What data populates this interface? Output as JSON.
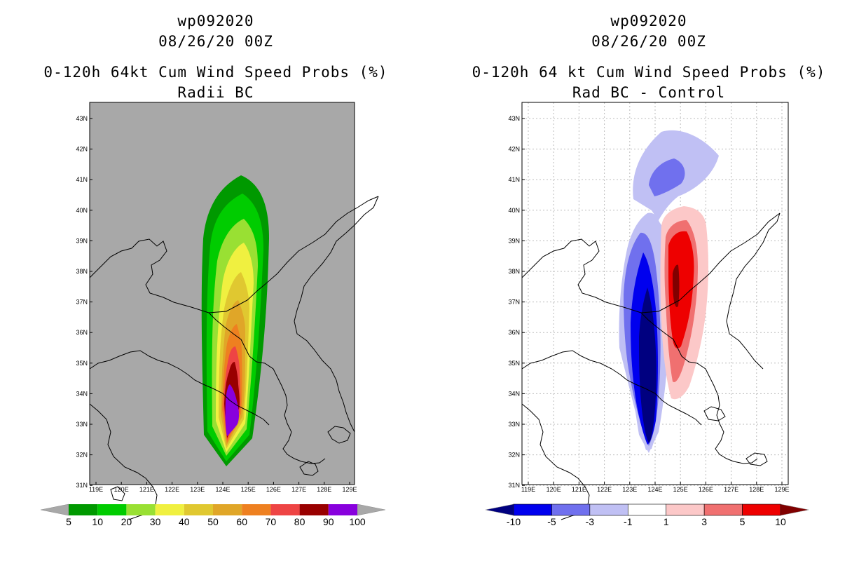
{
  "left_panel": {
    "storm_id": "wp092020",
    "datetime": "08/26/20 00Z",
    "product": "0-120h 64kt Cum Wind Speed Probs (%)",
    "subtitle": "Radii BC",
    "colorbar_labels": [
      "5",
      "10",
      "20",
      "30",
      "40",
      "50",
      "60",
      "70",
      "80",
      "90",
      "100"
    ],
    "colorbar_colors": [
      "#009900",
      "#00cc00",
      "#99e033",
      "#f0f040",
      "#e0c830",
      "#e0a628",
      "#ee8020",
      "#ee4444",
      "#990000",
      "#8800dd"
    ]
  },
  "right_panel": {
    "storm_id": "wp092020",
    "datetime": "08/26/20 00Z",
    "product": "0-120h 64 kt Cum Wind Speed Probs (%)",
    "subtitle": "Rad BC - Control",
    "colorbar_labels": [
      "-10",
      "-5",
      "-3",
      "-1",
      "1",
      "3",
      "5",
      "10"
    ],
    "colorbar_colors": [
      "#000080",
      "#0000ee",
      "#7070ee",
      "#c0c0f4",
      "#ffffff",
      "#fcc8c8",
      "#f07070",
      "#ee0000"
    ]
  },
  "map": {
    "lat_labels": [
      "43N",
      "42N",
      "41N",
      "40N",
      "39N",
      "38N",
      "37N",
      "36N",
      "35N",
      "34N",
      "33N",
      "32N",
      "31N"
    ],
    "lon_labels": [
      "119E",
      "120E",
      "121E",
      "122E",
      "123E",
      "124E",
      "125E",
      "126E",
      "127E",
      "128E",
      "129E"
    ],
    "left_background": "#a8a8a8"
  }
}
